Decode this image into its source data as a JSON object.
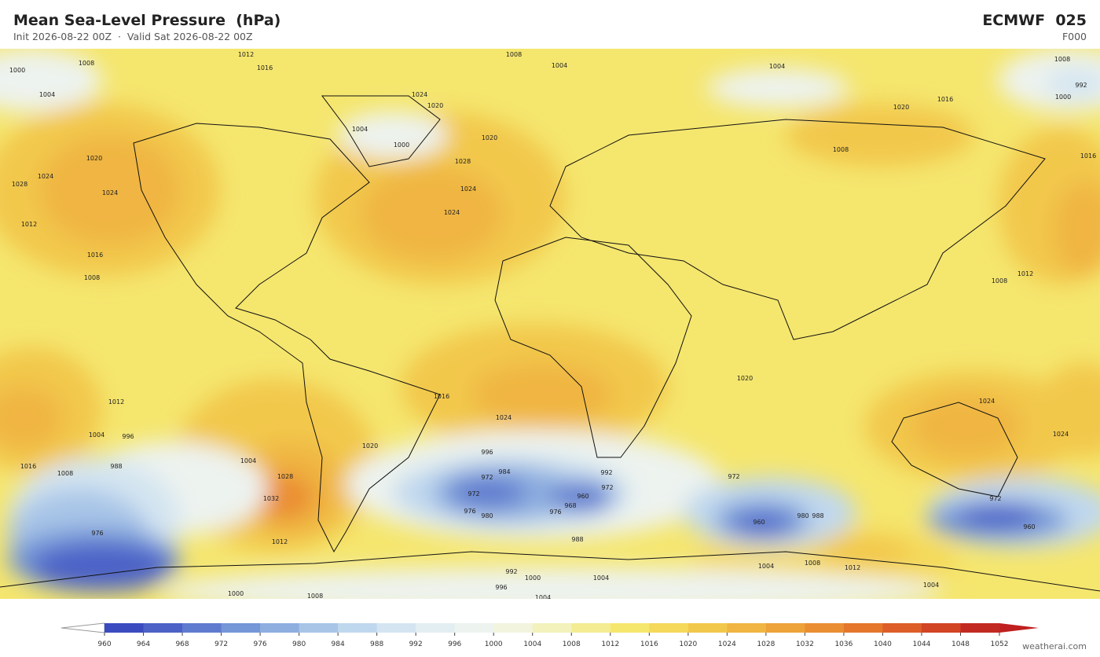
{
  "header": {
    "title": "Mean Sea-Level Pressure  (hPa)",
    "subtitle": "Init 2026-08-22 00Z  ·  Valid Sat 2026-08-22 00Z",
    "model": "ECMWF  025",
    "forecast": "F000"
  },
  "colorbar": {
    "ticks": [
      960,
      964,
      968,
      972,
      976,
      980,
      984,
      988,
      992,
      996,
      1000,
      1004,
      1008,
      1012,
      1016,
      1020,
      1024,
      1028,
      1032,
      1036,
      1040,
      1044,
      1048,
      1052
    ],
    "colors": [
      "#3a4bc0",
      "#4c62c7",
      "#5f7bcf",
      "#7596d7",
      "#8eaedf",
      "#a8c5e7",
      "#c0d8ee",
      "#d4e5f1",
      "#e3eef2",
      "#edf3ef",
      "#f2f4de",
      "#f3f1bc",
      "#f4ec92",
      "#f5e66e",
      "#f4d95a",
      "#f2c84c",
      "#f0b542",
      "#eda23a",
      "#ea8e33",
      "#e5772d",
      "#dd5e28",
      "#d14424",
      "#c22a21"
    ]
  },
  "map": {
    "contour_labels": [
      1012,
      1008,
      1004,
      1004,
      1008,
      1000,
      1008,
      1016,
      1004,
      1024,
      1020,
      1016,
      1020,
      992,
      1000,
      1000,
      1004,
      1020,
      1028,
      1024,
      1024,
      1020,
      1024,
      1028,
      1024,
      1012,
      1016,
      1008,
      1016,
      1008,
      1012,
      1008,
      1020,
      1024,
      1016,
      1024,
      1024,
      1012,
      1004,
      996,
      988,
      1016,
      1008,
      1004,
      1028,
      1032,
      1020,
      996,
      984,
      972,
      972,
      976,
      980,
      960,
      968,
      992,
      976,
      972,
      960,
      980,
      988,
      972,
      1012,
      976,
      988,
      1000,
      1004,
      996,
      1004,
      1008,
      1004,
      972,
      960,
      1012,
      1008,
      1004,
      992,
      1000
    ]
  },
  "footer": "weatherai.com"
}
